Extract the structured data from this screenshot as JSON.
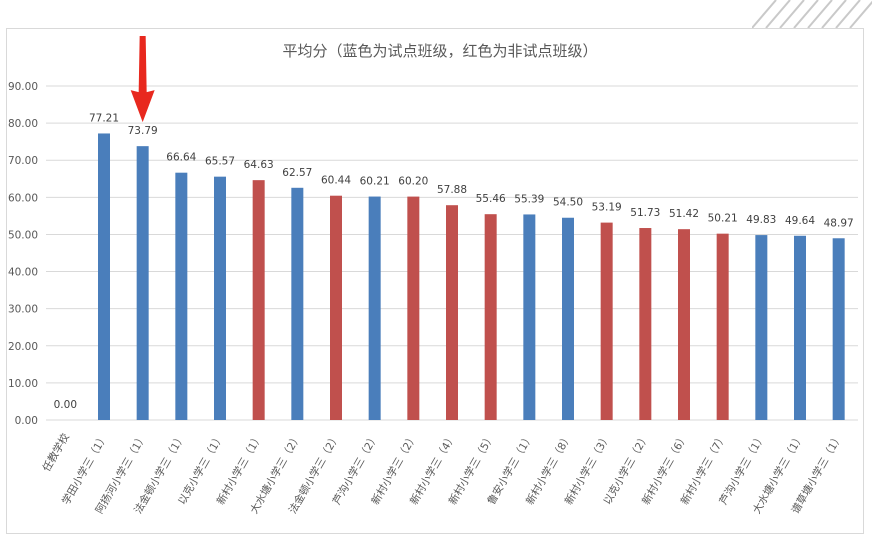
{
  "chart_data": {
    "type": "bar",
    "title": "平均分（蓝色为试点班级，红色为非试点班级）",
    "xlabel": "",
    "ylabel": "",
    "ylim": [
      0,
      90
    ],
    "yticks": [
      "0.00",
      "10.00",
      "20.00",
      "30.00",
      "40.00",
      "50.00",
      "60.00",
      "70.00",
      "80.00",
      "90.00"
    ],
    "grid": true,
    "categories": [
      "任教学校",
      "学田小学三（1）",
      "阿扬河小学三（1）",
      "法金顿小学三（1）",
      "以克小学三（1）",
      "新村小学三（1）",
      "大水塘小学三（2）",
      "法金顿小学三（2）",
      "芦沟小学三（2）",
      "新村小学三（2）",
      "新村小学三（4）",
      "新村小学三（5）",
      "鲁安小学三（1）",
      "新村小学三（8）",
      "新村小学三（3）",
      "以克小学三（2）",
      "新村小学三（6）",
      "新村小学三（7）",
      "芦沟小学三（1）",
      "大水塘小学三（1）",
      "谱草塘小学三（1）"
    ],
    "values": [
      0.0,
      77.21,
      73.79,
      66.64,
      65.57,
      64.63,
      62.57,
      60.44,
      60.21,
      60.2,
      57.88,
      55.46,
      55.39,
      54.5,
      53.19,
      51.73,
      51.42,
      50.21,
      49.83,
      49.64,
      48.97
    ],
    "value_labels": [
      "0.00",
      "77.21",
      "73.79",
      "66.64",
      "65.57",
      "64.63",
      "62.57",
      "60.44",
      "60.21",
      "60.20",
      "57.88",
      "55.46",
      "55.39",
      "54.50",
      "53.19",
      "51.73",
      "51.42",
      "50.21",
      "49.83",
      "49.64",
      "48.97"
    ],
    "bar_colors": [
      "none",
      "blue",
      "blue",
      "blue",
      "blue",
      "red",
      "blue",
      "red",
      "blue",
      "red",
      "red",
      "red",
      "blue",
      "blue",
      "red",
      "red",
      "red",
      "red",
      "blue",
      "blue",
      "blue"
    ],
    "colors": {
      "blue": "#4a7ebb",
      "red": "#c0504d",
      "arrow": "#e8281e",
      "grid": "#d9d9d9",
      "text": "#595959"
    },
    "highlight_index": 2
  }
}
